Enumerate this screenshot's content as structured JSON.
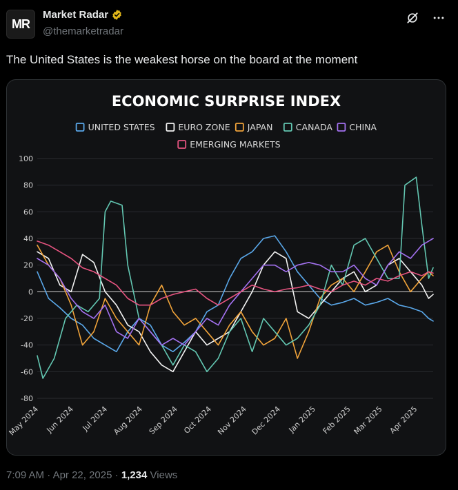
{
  "post": {
    "display_name": "Market Radar",
    "handle": "@themarketradar",
    "avatar_text": "MR",
    "verified_icon": "verified-badge-icon",
    "text": "The United States is the weakest horse on the board at the moment",
    "time": "7:09 AM",
    "sep": "·",
    "date": "Apr 22, 2025",
    "views_count": "1,234",
    "views_label": "Views",
    "grok_icon": "grok-icon",
    "more_icon": "more-icon"
  },
  "chart_data": {
    "type": "line",
    "title": "ECONOMIC SURPRISE INDEX",
    "ylim": [
      -80,
      100
    ],
    "yticks": [
      100,
      80,
      60,
      40,
      20,
      0,
      -20,
      -40,
      -60,
      -80
    ],
    "xlim": [
      0,
      350
    ],
    "xticks": [
      {
        "label": "May 2024",
        "x": 0
      },
      {
        "label": "Jun 2024",
        "x": 31
      },
      {
        "label": "Jul 2024",
        "x": 61
      },
      {
        "label": "Aug 2024",
        "x": 92
      },
      {
        "label": "Sep 2024",
        "x": 123
      },
      {
        "label": "Oct 2024",
        "x": 153
      },
      {
        "label": "Nov 2024",
        "x": 184
      },
      {
        "label": "Dec 2024",
        "x": 214
      },
      {
        "label": "Jan 2025",
        "x": 245
      },
      {
        "label": "Feb 2025",
        "x": 276
      },
      {
        "label": "Mar 2025",
        "x": 304
      },
      {
        "label": "Apr 2025",
        "x": 335
      }
    ],
    "zero_line": true,
    "grid": true,
    "legend_position": "top",
    "series": [
      {
        "name": "UNITED STATES",
        "color": "#5aa8ea",
        "x": [
          0,
          10,
          20,
          30,
          40,
          50,
          60,
          70,
          80,
          90,
          100,
          110,
          120,
          130,
          140,
          150,
          160,
          170,
          180,
          190,
          200,
          210,
          220,
          230,
          240,
          250,
          260,
          270,
          280,
          290,
          300,
          310,
          320,
          330,
          340,
          346,
          350
        ],
        "y": [
          15,
          -5,
          -12,
          -20,
          -25,
          -35,
          -40,
          -45,
          -30,
          -20,
          -25,
          -40,
          -45,
          -38,
          -30,
          -15,
          -10,
          10,
          25,
          30,
          40,
          42,
          30,
          15,
          5,
          -5,
          -10,
          -8,
          -5,
          -10,
          -8,
          -5,
          -10,
          -12,
          -15,
          -20,
          -22
        ]
      },
      {
        "name": "EURO ZONE",
        "color": "#f2f2f2",
        "x": [
          0,
          10,
          20,
          30,
          40,
          50,
          60,
          70,
          80,
          90,
          100,
          110,
          120,
          130,
          140,
          150,
          160,
          170,
          180,
          190,
          200,
          210,
          220,
          230,
          240,
          250,
          260,
          270,
          280,
          290,
          300,
          310,
          320,
          330,
          340,
          346,
          350
        ],
        "y": [
          30,
          25,
          5,
          0,
          28,
          22,
          0,
          -10,
          -25,
          -30,
          -45,
          -55,
          -60,
          -45,
          -30,
          -40,
          -35,
          -30,
          -15,
          0,
          20,
          30,
          25,
          -15,
          -20,
          -10,
          0,
          10,
          15,
          0,
          5,
          20,
          25,
          15,
          5,
          -5,
          -2
        ]
      },
      {
        "name": "JAPAN",
        "color": "#f0a33a",
        "x": [
          0,
          10,
          20,
          30,
          40,
          50,
          60,
          70,
          80,
          90,
          100,
          110,
          120,
          130,
          140,
          150,
          160,
          170,
          180,
          190,
          200,
          210,
          220,
          230,
          240,
          250,
          260,
          270,
          280,
          290,
          300,
          310,
          320,
          330,
          340,
          346,
          350
        ],
        "y": [
          35,
          20,
          10,
          -10,
          -40,
          -30,
          -5,
          -20,
          -30,
          -40,
          -10,
          5,
          -15,
          -25,
          -20,
          -30,
          -40,
          -25,
          -15,
          -30,
          -40,
          -35,
          -20,
          -50,
          -30,
          -5,
          5,
          10,
          0,
          15,
          30,
          35,
          15,
          0,
          10,
          15,
          12
        ]
      },
      {
        "name": "CANADA",
        "color": "#63c7b2",
        "x": [
          0,
          5,
          15,
          25,
          35,
          45,
          55,
          60,
          65,
          75,
          80,
          90,
          100,
          110,
          120,
          130,
          140,
          150,
          160,
          170,
          180,
          190,
          200,
          210,
          220,
          230,
          240,
          250,
          260,
          270,
          280,
          290,
          300,
          310,
          320,
          325,
          335,
          340,
          346,
          350
        ],
        "y": [
          -48,
          -65,
          -50,
          -20,
          -10,
          -15,
          -5,
          60,
          68,
          65,
          20,
          -20,
          -30,
          -40,
          -55,
          -40,
          -45,
          -60,
          -50,
          -30,
          -20,
          -45,
          -20,
          -30,
          -40,
          -35,
          -25,
          -10,
          20,
          5,
          35,
          40,
          25,
          10,
          10,
          80,
          86,
          50,
          10,
          18
        ]
      },
      {
        "name": "CHINA",
        "color": "#a371f0",
        "x": [
          0,
          10,
          20,
          30,
          40,
          50,
          60,
          70,
          80,
          90,
          100,
          110,
          120,
          130,
          140,
          150,
          160,
          170,
          180,
          190,
          200,
          210,
          220,
          230,
          240,
          250,
          260,
          270,
          280,
          290,
          300,
          310,
          320,
          330,
          340,
          346,
          350
        ],
        "y": [
          25,
          20,
          10,
          -5,
          -15,
          -20,
          -10,
          -30,
          -35,
          -20,
          -30,
          -40,
          -35,
          -40,
          -30,
          -20,
          -25,
          -10,
          0,
          10,
          20,
          20,
          15,
          20,
          22,
          20,
          15,
          15,
          20,
          10,
          5,
          20,
          30,
          25,
          35,
          38,
          40
        ]
      },
      {
        "name": "EMERGING MARKETS",
        "color": "#e75480",
        "x": [
          0,
          10,
          20,
          30,
          40,
          50,
          60,
          70,
          80,
          90,
          100,
          110,
          120,
          130,
          140,
          150,
          160,
          170,
          180,
          190,
          200,
          210,
          220,
          230,
          240,
          250,
          260,
          270,
          280,
          290,
          300,
          310,
          320,
          330,
          340,
          346,
          350
        ],
        "y": [
          38,
          35,
          30,
          25,
          18,
          15,
          10,
          5,
          -5,
          -10,
          -10,
          -5,
          -2,
          0,
          2,
          -5,
          -10,
          -5,
          0,
          5,
          2,
          0,
          2,
          3,
          5,
          2,
          0,
          5,
          8,
          5,
          10,
          8,
          12,
          15,
          12,
          15,
          14
        ]
      }
    ]
  }
}
